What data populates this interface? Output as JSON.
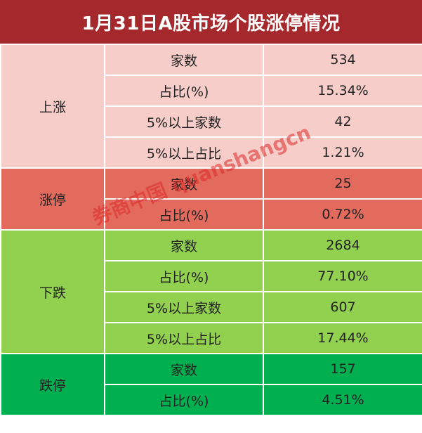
{
  "title": "1月31日A股市场个股涨停情况",
  "watermark": "券商中国 quanshangcn",
  "groups": [
    {
      "name": "上涨",
      "rows": [
        {
          "label": "家数",
          "value": "534"
        },
        {
          "label": "占比(%)",
          "value": "15.34%"
        },
        {
          "label": "5%以上家数",
          "value": "42"
        },
        {
          "label": "5%以上占比",
          "value": "1.21%"
        }
      ]
    },
    {
      "name": "涨停",
      "rows": [
        {
          "label": "家数",
          "value": "25"
        },
        {
          "label": "占比(%)",
          "value": "0.72%"
        }
      ]
    },
    {
      "name": "下跌",
      "rows": [
        {
          "label": "家数",
          "value": "2684"
        },
        {
          "label": "占比(%)",
          "value": "77.10%"
        },
        {
          "label": "5%以上家数",
          "value": "607"
        },
        {
          "label": "5%以上占比",
          "value": "17.44%"
        }
      ]
    },
    {
      "name": "跌停",
      "rows": [
        {
          "label": "家数",
          "value": "157"
        },
        {
          "label": "占比(%)",
          "value": "4.51%"
        }
      ]
    }
  ],
  "colors": {
    "title_bg": "#a5282c",
    "up": "#f6cdc8",
    "limit_up": "#e36b5d",
    "down": "#92d050",
    "limit_down": "#00b050"
  }
}
